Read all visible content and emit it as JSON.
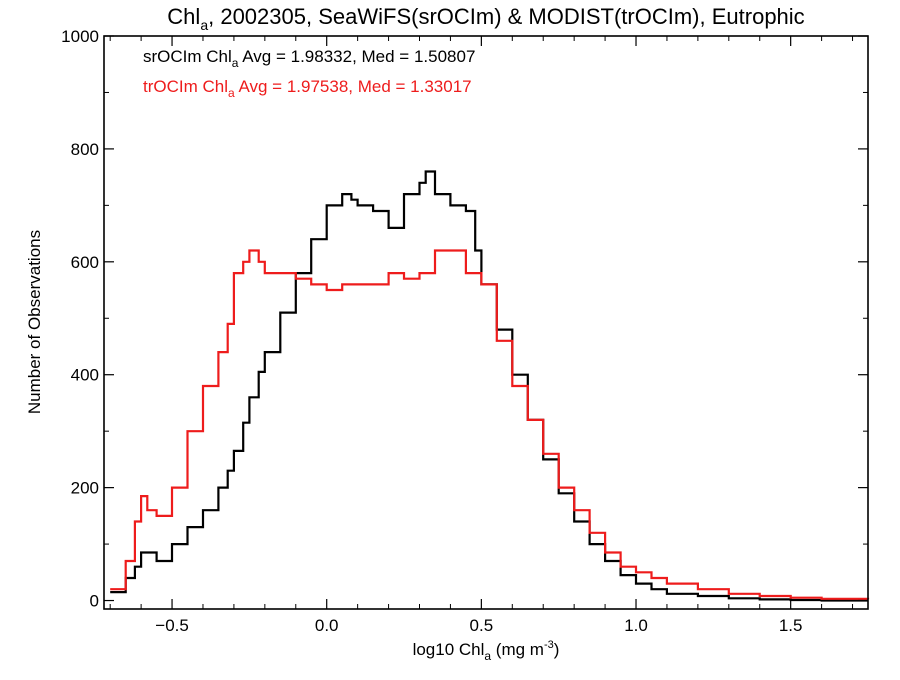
{
  "chart_data": {
    "type": "line",
    "step": true,
    "title": {
      "pre": "Chl",
      "sub": "a",
      "post": ", 2002305, SeaWiFS(srOCIm) & MODIST(trOCIm), Eutrophic"
    },
    "xlabel": {
      "pre": "log10 Chl",
      "sub": "a",
      "post": " (mg m",
      "sup": "-3",
      "end": ")"
    },
    "ylabel": "Number of Observations",
    "xlim": [
      -0.72,
      1.75
    ],
    "ylim": [
      -15,
      1000
    ],
    "xticks": [
      -0.5,
      0.0,
      0.5,
      1.0,
      1.5
    ],
    "xtick_labels": [
      "−0.5",
      "0.0",
      "0.5",
      "1.0",
      "1.5"
    ],
    "yticks": [
      0,
      200,
      400,
      600,
      800,
      1000
    ],
    "ytick_labels": [
      "0",
      "200",
      "400",
      "600",
      "800",
      "1000"
    ],
    "grid": false,
    "legend_position": "top-left",
    "series": [
      {
        "color": "#000000",
        "legend": {
          "pre": "srOCIm Chl",
          "sub": "a",
          "post": " Avg = 1.98332, Med = 1.50807"
        },
        "x": [
          -0.7,
          -0.65,
          -0.62,
          -0.6,
          -0.55,
          -0.5,
          -0.45,
          -0.4,
          -0.35,
          -0.32,
          -0.3,
          -0.27,
          -0.25,
          -0.22,
          -0.2,
          -0.15,
          -0.1,
          -0.05,
          0.0,
          0.05,
          0.08,
          0.1,
          0.15,
          0.2,
          0.25,
          0.3,
          0.32,
          0.35,
          0.4,
          0.45,
          0.48,
          0.5,
          0.55,
          0.6,
          0.65,
          0.7,
          0.75,
          0.8,
          0.85,
          0.9,
          0.95,
          1.0,
          1.05,
          1.1,
          1.2,
          1.3,
          1.4,
          1.5,
          1.6,
          1.75
        ],
        "y": [
          15,
          40,
          60,
          85,
          70,
          100,
          130,
          160,
          200,
          230,
          265,
          315,
          360,
          405,
          440,
          510,
          580,
          640,
          700,
          720,
          710,
          700,
          690,
          660,
          720,
          740,
          760,
          720,
          700,
          690,
          620,
          560,
          480,
          400,
          320,
          250,
          190,
          140,
          100,
          70,
          45,
          30,
          20,
          12,
          8,
          4,
          2,
          1,
          0,
          0
        ]
      },
      {
        "color": "#ee1c1c",
        "legend": {
          "pre": "trOCIm Chl",
          "sub": "a",
          "post": " Avg = 1.97538, Med = 1.33017"
        },
        "x": [
          -0.7,
          -0.65,
          -0.62,
          -0.6,
          -0.58,
          -0.55,
          -0.5,
          -0.45,
          -0.4,
          -0.35,
          -0.32,
          -0.3,
          -0.27,
          -0.25,
          -0.22,
          -0.2,
          -0.15,
          -0.1,
          -0.05,
          0.0,
          0.05,
          0.1,
          0.15,
          0.2,
          0.25,
          0.3,
          0.35,
          0.4,
          0.45,
          0.5,
          0.55,
          0.6,
          0.65,
          0.7,
          0.75,
          0.8,
          0.85,
          0.9,
          0.95,
          1.0,
          1.05,
          1.1,
          1.2,
          1.3,
          1.4,
          1.5,
          1.6,
          1.75
        ],
        "y": [
          20,
          70,
          140,
          185,
          160,
          150,
          200,
          300,
          380,
          440,
          490,
          580,
          600,
          620,
          600,
          580,
          580,
          570,
          560,
          550,
          560,
          560,
          560,
          580,
          570,
          580,
          620,
          620,
          580,
          560,
          460,
          380,
          320,
          260,
          200,
          160,
          120,
          85,
          60,
          50,
          40,
          30,
          20,
          12,
          8,
          5,
          3,
          2
        ]
      }
    ]
  }
}
